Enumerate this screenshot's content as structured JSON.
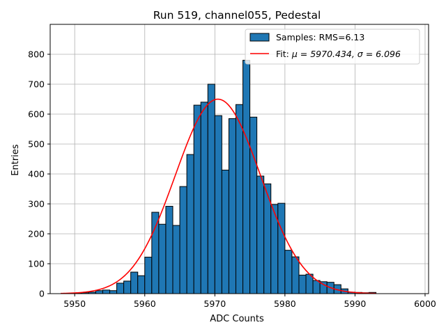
{
  "chart_data": {
    "type": "bar",
    "title": "Run 519, channel055, Pedestal",
    "xlabel": "ADC Counts",
    "ylabel": "Entries",
    "xlim": [
      5946.5,
      6000.5
    ],
    "ylim": [
      0,
      900
    ],
    "xticks": [
      5950,
      5960,
      5970,
      5980,
      5990,
      6000
    ],
    "yticks": [
      0,
      100,
      200,
      300,
      400,
      500,
      600,
      700,
      800
    ],
    "grid": true,
    "legend_position": "top-right",
    "bin_width": 1,
    "bin_starts": [
      5950,
      5951,
      5952,
      5953,
      5954,
      5955,
      5956,
      5957,
      5958,
      5959,
      5960,
      5961,
      5962,
      5963,
      5964,
      5965,
      5966,
      5967,
      5968,
      5969,
      5970,
      5971,
      5972,
      5973,
      5974,
      5975,
      5976,
      5977,
      5978,
      5979,
      5980,
      5981,
      5982,
      5983,
      5984,
      5985,
      5986,
      5987,
      5988,
      5989,
      5990,
      5991,
      5992
    ],
    "values": [
      2,
      3,
      5,
      10,
      12,
      10,
      35,
      42,
      72,
      60,
      122,
      272,
      232,
      292,
      228,
      358,
      465,
      630,
      640,
      700,
      595,
      413,
      585,
      632,
      780,
      590,
      393,
      367,
      298,
      302,
      145,
      123,
      62,
      65,
      44,
      40,
      38,
      30,
      16,
      5,
      4,
      3,
      4
    ],
    "series": [
      {
        "name": "Samples: RMS=6.13",
        "kind": "histogram",
        "color": "#1f77b4",
        "edgecolor": "#000000"
      },
      {
        "name_prefix": "Fit: ",
        "name_math": "μ = 5970.434, σ = 6.096",
        "kind": "gaussian-fit",
        "mu": 5970.434,
        "sigma": 6.096,
        "amplitude": 650,
        "x_range": [
          5948,
          5993
        ],
        "color": "#ff0000"
      }
    ]
  }
}
